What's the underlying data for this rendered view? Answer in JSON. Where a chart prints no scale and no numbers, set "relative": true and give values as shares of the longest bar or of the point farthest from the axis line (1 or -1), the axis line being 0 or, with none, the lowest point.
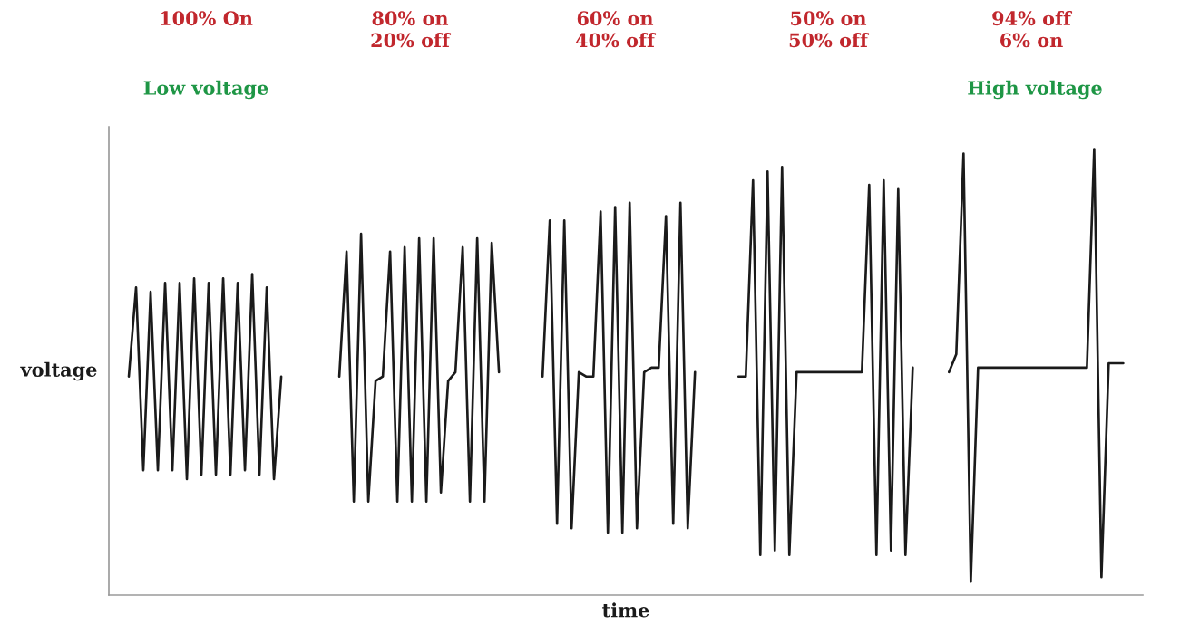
{
  "chart_data": {
    "type": "line",
    "relative": true,
    "xlabel": "time",
    "ylabel": "voltage",
    "tick_labels": false,
    "annotations": [
      "100% On",
      "80% on\n20% off",
      "60% on\n40% off",
      "50% on\n50% off",
      "94% off\n6% on",
      "Low voltage",
      "High voltage"
    ],
    "categories": [
      null,
      null,
      null,
      null,
      null,
      null,
      null,
      null,
      null,
      null,
      null,
      null,
      null,
      null,
      null,
      null,
      null,
      null,
      null,
      null,
      null,
      null,
      null,
      null,
      null,
      null,
      null,
      null,
      null,
      null,
      null,
      null,
      null,
      null,
      null,
      null,
      null,
      null,
      null,
      null,
      null,
      null,
      null,
      null,
      null,
      null,
      null,
      null,
      null,
      null,
      null,
      null,
      null,
      null,
      null,
      null,
      null,
      null,
      null,
      null,
      null,
      null,
      null,
      null,
      null,
      null,
      null,
      null,
      null,
      null,
      null,
      null,
      null,
      null,
      null,
      null,
      null,
      null,
      null,
      null,
      null,
      null,
      null,
      null,
      null,
      null,
      null,
      null,
      null,
      null,
      null,
      null,
      null,
      null,
      null,
      null,
      null,
      null,
      null,
      null,
      null,
      null,
      null,
      null,
      null,
      null,
      null,
      null,
      null,
      null,
      null,
      null,
      null,
      null,
      null,
      null,
      null,
      null,
      null,
      null,
      null,
      null,
      null,
      null,
      null,
      null,
      null,
      null,
      null,
      null,
      null,
      null,
      null,
      null,
      null,
      null,
      null,
      null
    ],
    "series": [
      {
        "color": "#1a1a1a",
        "values": [
          0.49,
          0.69,
          0.28,
          0.68,
          0.28,
          0.7,
          0.28,
          0.7,
          0.26,
          0.71,
          0.27,
          0.7,
          0.27,
          0.71,
          0.27,
          0.7,
          0.28,
          0.72,
          0.27,
          0.69,
          0.26,
          0.49,
          null,
          null,
          null,
          null,
          null,
          null,
          null,
          null,
          null,
          null,
          null,
          null,
          null,
          null,
          null,
          null,
          null,
          null,
          null,
          null,
          null,
          null,
          null,
          null,
          null,
          null,
          null,
          null,
          null,
          null,
          null,
          null,
          null,
          null,
          null,
          null,
          null,
          null,
          null,
          null,
          null,
          null,
          null,
          null,
          null,
          null,
          null,
          null,
          null,
          null,
          null,
          null,
          null,
          null,
          null,
          null,
          null,
          null,
          null,
          null,
          null,
          null,
          null,
          null,
          null,
          null,
          null,
          null,
          null,
          null,
          null,
          null,
          null,
          null,
          null,
          null,
          null,
          null,
          null,
          null,
          null,
          null,
          null,
          null,
          null,
          null,
          null,
          null,
          null,
          null,
          null,
          null,
          null,
          null,
          null,
          null,
          null,
          null,
          null,
          null,
          null,
          null,
          null,
          null,
          null,
          null,
          null,
          null,
          null,
          null,
          null,
          null,
          null,
          null,
          null,
          null
        ]
      },
      {
        "color": "#1a1a1a",
        "values": [
          null,
          null,
          null,
          null,
          null,
          null,
          null,
          null,
          null,
          null,
          null,
          null,
          null,
          null,
          null,
          null,
          null,
          null,
          null,
          null,
          null,
          null,
          null,
          null,
          null,
          null,
          null,
          null,
          null,
          0.49,
          0.77,
          0.21,
          0.81,
          0.21,
          0.48,
          0.49,
          0.77,
          0.21,
          0.78,
          0.21,
          0.8,
          0.21,
          0.8,
          0.23,
          0.48,
          0.5,
          0.78,
          0.21,
          0.8,
          0.21,
          0.79,
          0.5,
          null,
          null,
          null,
          null,
          null,
          null,
          null,
          null,
          null,
          null,
          null,
          null,
          null,
          null,
          null,
          null,
          null,
          null,
          null,
          null,
          null,
          null,
          null,
          null,
          null,
          null,
          null,
          null,
          null,
          null,
          null,
          null,
          null,
          null,
          null,
          null,
          null,
          null,
          null,
          null,
          null,
          null,
          null,
          null,
          null,
          null,
          null,
          null,
          null,
          null,
          null,
          null,
          null,
          null,
          null,
          null,
          null,
          null,
          null,
          null,
          null,
          null,
          null,
          null,
          null,
          null,
          null,
          null,
          null,
          null,
          null,
          null,
          null,
          null,
          null,
          null,
          null,
          null,
          null,
          null,
          null,
          null,
          null,
          null,
          null,
          null
        ]
      },
      {
        "color": "#1a1a1a",
        "values": [
          null,
          null,
          null,
          null,
          null,
          null,
          null,
          null,
          null,
          null,
          null,
          null,
          null,
          null,
          null,
          null,
          null,
          null,
          null,
          null,
          null,
          null,
          null,
          null,
          null,
          null,
          null,
          null,
          null,
          null,
          null,
          null,
          null,
          null,
          null,
          null,
          null,
          null,
          null,
          null,
          null,
          null,
          null,
          null,
          null,
          null,
          null,
          null,
          null,
          null,
          null,
          null,
          null,
          null,
          null,
          null,
          null,
          0.49,
          0.84,
          0.16,
          0.84,
          0.15,
          0.5,
          0.49,
          0.49,
          0.86,
          0.14,
          0.87,
          0.14,
          0.88,
          0.15,
          0.5,
          0.51,
          0.51,
          0.85,
          0.16,
          0.88,
          0.15,
          0.5,
          null,
          null,
          null,
          null,
          null,
          null,
          null,
          null,
          null,
          null,
          null,
          null,
          null,
          null,
          null,
          null,
          null,
          null,
          null,
          null,
          null,
          null,
          null,
          null,
          null,
          null,
          null,
          null,
          null,
          null,
          null,
          null,
          null,
          null,
          null,
          null,
          null,
          null,
          null,
          null,
          null,
          null,
          null,
          null,
          null,
          null,
          null,
          null,
          null,
          null,
          null,
          null,
          null,
          null,
          null,
          null,
          null,
          null,
          null
        ]
      },
      {
        "color": "#1a1a1a",
        "values": [
          null,
          null,
          null,
          null,
          null,
          null,
          null,
          null,
          null,
          null,
          null,
          null,
          null,
          null,
          null,
          null,
          null,
          null,
          null,
          null,
          null,
          null,
          null,
          null,
          null,
          null,
          null,
          null,
          null,
          null,
          null,
          null,
          null,
          null,
          null,
          null,
          null,
          null,
          null,
          null,
          null,
          null,
          null,
          null,
          null,
          null,
          null,
          null,
          null,
          null,
          null,
          null,
          null,
          null,
          null,
          null,
          null,
          null,
          null,
          null,
          null,
          null,
          null,
          null,
          null,
          null,
          null,
          null,
          null,
          null,
          null,
          null,
          null,
          null,
          null,
          null,
          null,
          null,
          null,
          null,
          null,
          null,
          null,
          null,
          0.49,
          0.49,
          0.93,
          0.09,
          0.95,
          0.1,
          0.96,
          0.09,
          0.5,
          0.5,
          0.5,
          0.5,
          0.5,
          0.5,
          0.5,
          0.5,
          0.5,
          0.5,
          0.92,
          0.09,
          0.93,
          0.1,
          0.91,
          0.09,
          0.51,
          null,
          null,
          null,
          null,
          null,
          null,
          null,
          null,
          null,
          null,
          null,
          null,
          null,
          null,
          null,
          null,
          null,
          null,
          null,
          null,
          null,
          null,
          null,
          null,
          null,
          null,
          null,
          null,
          null
        ]
      },
      {
        "color": "#1a1a1a",
        "values": [
          null,
          null,
          null,
          null,
          null,
          null,
          null,
          null,
          null,
          null,
          null,
          null,
          null,
          null,
          null,
          null,
          null,
          null,
          null,
          null,
          null,
          null,
          null,
          null,
          null,
          null,
          null,
          null,
          null,
          null,
          null,
          null,
          null,
          null,
          null,
          null,
          null,
          null,
          null,
          null,
          null,
          null,
          null,
          null,
          null,
          null,
          null,
          null,
          null,
          null,
          null,
          null,
          null,
          null,
          null,
          null,
          null,
          null,
          null,
          null,
          null,
          null,
          null,
          null,
          null,
          null,
          null,
          null,
          null,
          null,
          null,
          null,
          null,
          null,
          null,
          null,
          null,
          null,
          null,
          null,
          null,
          null,
          null,
          null,
          null,
          null,
          null,
          null,
          null,
          null,
          null,
          null,
          null,
          null,
          null,
          null,
          null,
          null,
          null,
          null,
          null,
          null,
          null,
          null,
          null,
          null,
          null,
          null,
          null,
          null,
          null,
          null,
          null,
          0.5,
          0.54,
          0.99,
          0.03,
          0.51,
          0.51,
          0.51,
          0.51,
          0.51,
          0.51,
          0.51,
          0.51,
          0.51,
          0.51,
          0.51,
          0.51,
          0.51,
          0.51,
          0.51,
          0.51,
          1.0,
          0.04,
          0.52,
          0.52,
          0.52
        ]
      }
    ]
  }
}
